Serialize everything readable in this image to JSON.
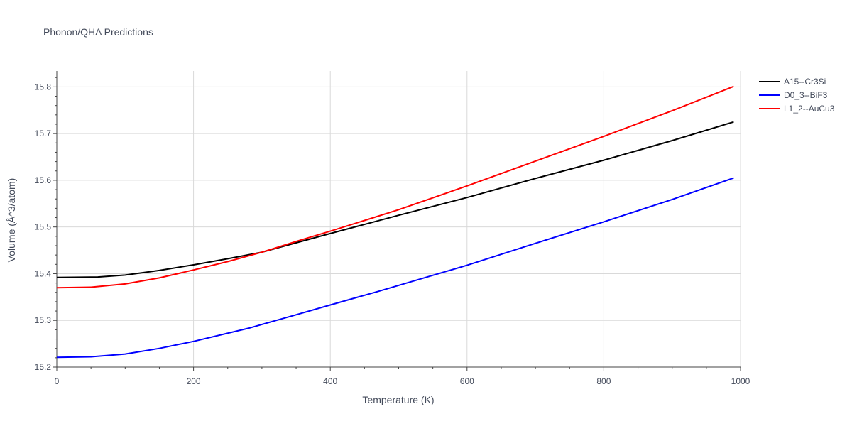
{
  "chart_data": {
    "type": "line",
    "title": "Phonon/QHA Predictions",
    "xlabel": "Temperature (K)",
    "ylabel": "Volume (Å^3/atom)",
    "xlim": [
      0,
      1000
    ],
    "ylim": [
      15.2,
      15.834
    ],
    "xticks": [
      0,
      200,
      400,
      600,
      800,
      1000
    ],
    "yticks": [
      15.2,
      15.3,
      15.4,
      15.5,
      15.6,
      15.7,
      15.8
    ],
    "grid": true,
    "legend_position": "top-right",
    "series": [
      {
        "name": "A15--Cr3Si",
        "color": "#000000",
        "x": [
          0,
          60,
          100,
          150,
          200,
          250,
          300,
          350,
          400,
          500,
          600,
          700,
          800,
          900,
          990
        ],
        "y": [
          15.392,
          15.393,
          15.397,
          15.407,
          15.419,
          15.432,
          15.446,
          15.466,
          15.486,
          15.525,
          15.563,
          15.604,
          15.643,
          15.685,
          15.725
        ]
      },
      {
        "name": "D0_3--BiF3",
        "color": "#0000ff",
        "x": [
          0,
          50,
          100,
          150,
          200,
          280,
          350,
          400,
          470,
          600,
          700,
          800,
          900,
          990
        ],
        "y": [
          15.221,
          15.222,
          15.228,
          15.24,
          15.255,
          15.283,
          15.312,
          15.333,
          15.362,
          15.418,
          15.465,
          15.511,
          15.559,
          15.605
        ]
      },
      {
        "name": "L1_2--AuCu3",
        "color": "#ff0000",
        "x": [
          0,
          50,
          100,
          150,
          200,
          250,
          300,
          350,
          400,
          450,
          500,
          600,
          700,
          800,
          900,
          990
        ],
        "y": [
          15.37,
          15.371,
          15.378,
          15.391,
          15.408,
          15.426,
          15.446,
          15.469,
          15.491,
          15.514,
          15.537,
          15.588,
          15.641,
          15.694,
          15.749,
          15.801
        ]
      }
    ]
  }
}
